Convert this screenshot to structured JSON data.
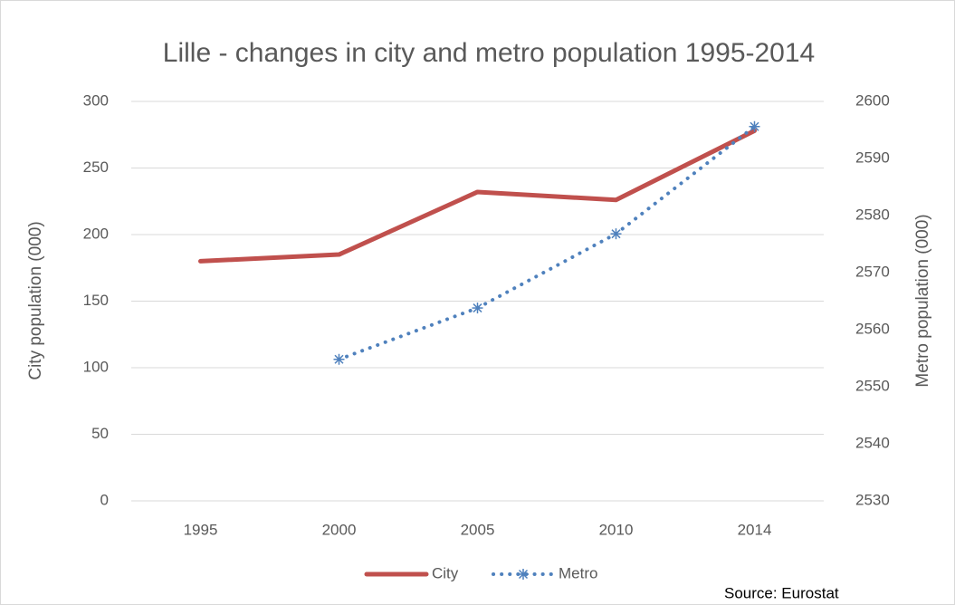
{
  "chart_data": {
    "type": "line",
    "title": "Lille - changes in city and metro population 1995-2014",
    "ylabel": "City population (000)",
    "y2label": "Metro population (000)",
    "source": "Source: Eurostat",
    "categories": [
      "1995",
      "2000",
      "2005",
      "2010",
      "2014"
    ],
    "series": [
      {
        "name": "City",
        "color": "#c0504d",
        "values": [
          180,
          185,
          232,
          226,
          278
        ]
      },
      {
        "name": "Metro",
        "color": "#4f81bd",
        "axis": "y2",
        "values": [
          null,
          2554.8,
          2563.8,
          2576.8,
          2595.6
        ]
      }
    ],
    "ylim": [
      0,
      300
    ],
    "yticks": [
      0,
      50,
      100,
      150,
      200,
      250,
      300
    ],
    "y2lim": [
      2530,
      2600
    ],
    "y2ticks": [
      2530,
      2540,
      2550,
      2560,
      2570,
      2580,
      2590,
      2600
    ],
    "grid": true,
    "legend": "bottom"
  }
}
